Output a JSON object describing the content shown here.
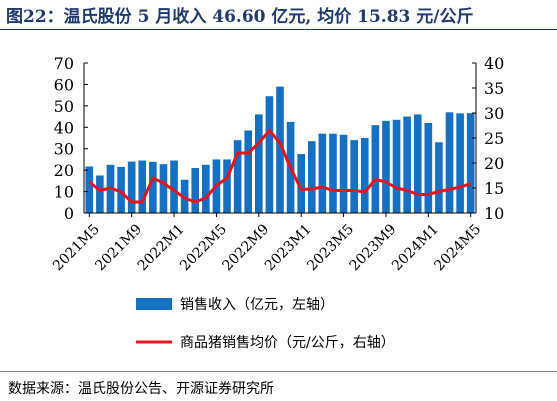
{
  "figure": {
    "title": "图22：温氏股份 5 月收入 46.60 亿元, 均价 15.83 元/公斤",
    "source": "数据来源：温氏股份公告、开源证券研究所"
  },
  "colors": {
    "bar": "#1670c2",
    "line": "#e8141c",
    "title": "#1f3a6e",
    "axis": "#000000"
  },
  "chart_data": {
    "type": "bar",
    "categories": [
      "2021M5",
      "2021M6",
      "2021M7",
      "2021M8",
      "2021M9",
      "2021M10",
      "2021M11",
      "2021M12",
      "2022M1",
      "2022M2",
      "2022M3",
      "2022M4",
      "2022M5",
      "2022M6",
      "2022M7",
      "2022M8",
      "2022M9",
      "2022M10",
      "2022M11",
      "2022M12",
      "2023M1",
      "2023M2",
      "2023M3",
      "2023M4",
      "2023M5",
      "2023M6",
      "2023M7",
      "2023M8",
      "2023M9",
      "2023M10",
      "2023M11",
      "2023M12",
      "2024M1",
      "2024M2",
      "2024M3",
      "2024M4",
      "2024M5"
    ],
    "x_tick_labels": [
      "2021M5",
      "2021M9",
      "2022M1",
      "2022M5",
      "2022M9",
      "2023M1",
      "2023M5",
      "2023M9",
      "2024M1",
      "2024M5"
    ],
    "series": [
      {
        "name": "销售收入（亿元，左轴）",
        "type": "bar",
        "axis": "left",
        "values": [
          21.7,
          17.5,
          22.5,
          21.5,
          24.0,
          24.5,
          23.9,
          22.8,
          24.5,
          15.5,
          21.0,
          22.5,
          25.0,
          25.0,
          34.0,
          38.5,
          46.0,
          54.5,
          59.0,
          42.5,
          27.5,
          33.5,
          37.0,
          37.0,
          36.5,
          34.0,
          35.0,
          41.0,
          43.0,
          43.5,
          45.0,
          46.0,
          42.0,
          33.0,
          47.0,
          46.5,
          46.6
        ]
      },
      {
        "name": "商品猪销售均价（元/公斤，右轴）",
        "type": "line",
        "axis": "right",
        "values": [
          16.2,
          14.5,
          15.0,
          14.2,
          12.2,
          12.2,
          17.0,
          16.0,
          14.5,
          13.0,
          12.2,
          13.0,
          15.5,
          17.0,
          22.0,
          22.0,
          24.0,
          26.5,
          24.0,
          19.0,
          14.7,
          14.8,
          15.2,
          14.5,
          14.5,
          14.5,
          14.2,
          16.7,
          16.2,
          15.0,
          14.5,
          13.7,
          13.7,
          14.3,
          14.7,
          15.2,
          15.83
        ]
      }
    ],
    "y_left": {
      "ylim": [
        0,
        70
      ],
      "ticks": [
        0,
        10,
        20,
        30,
        40,
        50,
        60,
        70
      ]
    },
    "y_right": {
      "ylim": [
        10,
        40
      ],
      "ticks": [
        10,
        15,
        20,
        25,
        30,
        35,
        40
      ]
    },
    "grid": false,
    "legend_placement": "bottom"
  }
}
